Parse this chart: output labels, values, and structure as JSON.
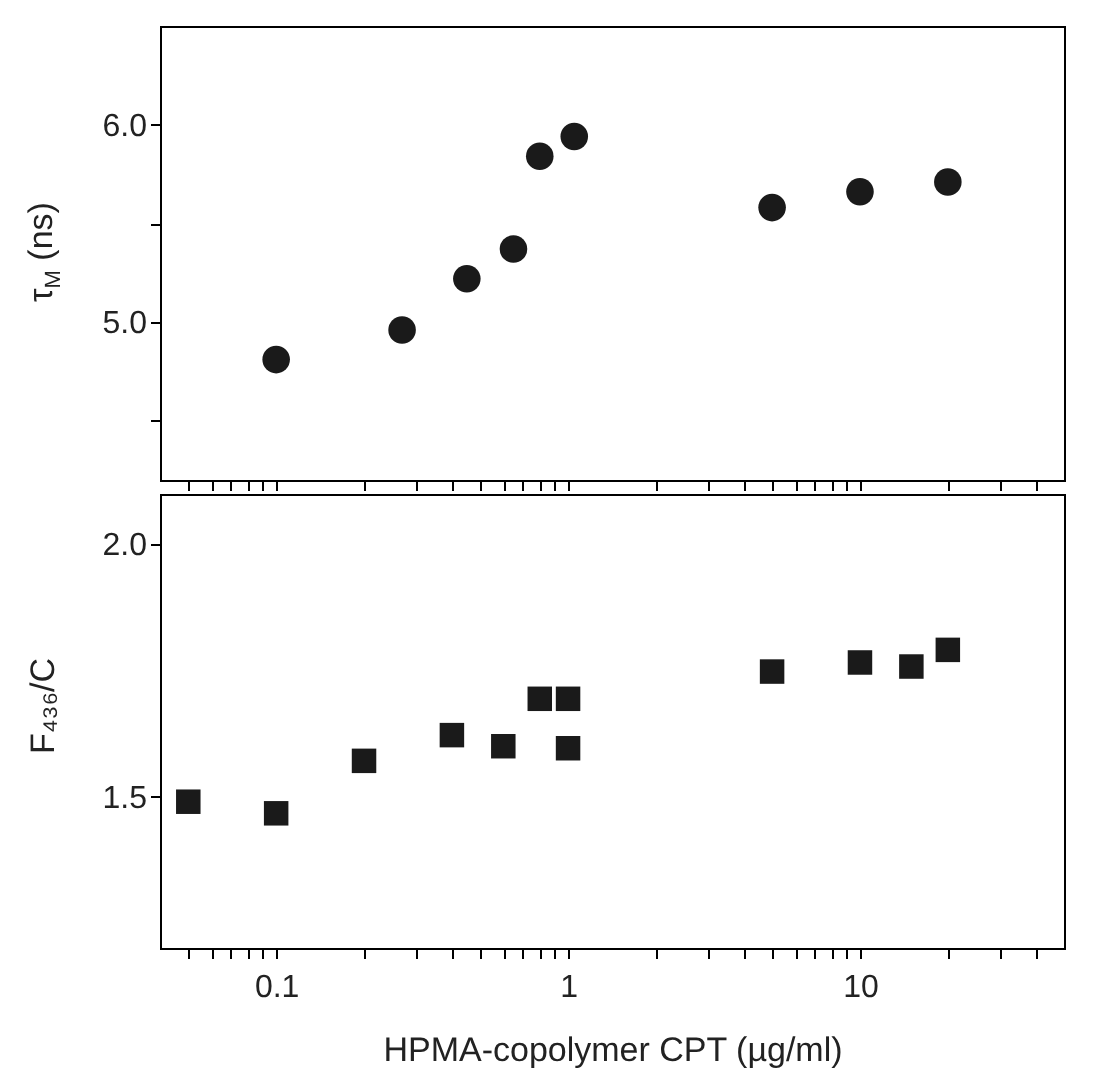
{
  "chart_data": [
    {
      "type": "scatter",
      "ylabel": "τ$_{M}$ (ns)",
      "log": "x",
      "marker": "circle",
      "tick_labels": "y",
      "x": [
        0.1,
        0.27,
        0.45,
        0.65,
        0.8,
        1.05,
        5,
        10,
        20
      ],
      "series": [
        {
          "color": "#1a1a1a",
          "values": [
            4.81,
            4.96,
            5.22,
            5.37,
            5.84,
            5.94,
            5.58,
            5.66,
            5.71
          ]
        }
      ],
      "xlim": [
        0.04,
        50
      ],
      "xticks": [
        {
          "value": 0.05,
          "label": null
        },
        {
          "value": 0.06,
          "label": null
        },
        {
          "value": 0.07,
          "label": null
        },
        {
          "value": 0.08,
          "label": null
        },
        {
          "value": 0.09,
          "label": null
        },
        {
          "value": 0.1,
          "label": null
        },
        {
          "value": 0.2,
          "label": null
        },
        {
          "value": 0.3,
          "label": null
        },
        {
          "value": 0.4,
          "label": null
        },
        {
          "value": 0.5,
          "label": null
        },
        {
          "value": 0.6,
          "label": null
        },
        {
          "value": 0.7,
          "label": null
        },
        {
          "value": 0.8,
          "label": null
        },
        {
          "value": 0.9,
          "label": null
        },
        {
          "value": 1,
          "label": null
        },
        {
          "value": 2,
          "label": null
        },
        {
          "value": 3,
          "label": null
        },
        {
          "value": 4,
          "label": null
        },
        {
          "value": 5,
          "label": null
        },
        {
          "value": 6,
          "label": null
        },
        {
          "value": 7,
          "label": null
        },
        {
          "value": 8,
          "label": null
        },
        {
          "value": 9,
          "label": null
        },
        {
          "value": 10,
          "label": null
        },
        {
          "value": 20,
          "label": null
        },
        {
          "value": 30,
          "label": null
        },
        {
          "value": 40,
          "label": null
        }
      ],
      "ylim": [
        4.2,
        6.5
      ],
      "yticks": [
        {
          "value": 4.5,
          "label": null
        },
        {
          "value": 5,
          "label": "5.0"
        },
        {
          "value": 5.5,
          "label": null
        },
        {
          "value": 6,
          "label": "6.0"
        }
      ]
    },
    {
      "type": "scatter",
      "ylabel": "F₄₃₆/C",
      "xlabel": "HPMA-copolymer CPT (µg/ml)",
      "log": "x",
      "marker": "square",
      "x": [
        0.05,
        0.1,
        0.2,
        0.4,
        0.6,
        0.8,
        1,
        1,
        5,
        10,
        15,
        20
      ],
      "series": [
        {
          "color": "#1a1a1a",
          "values": [
            1.49,
            1.467,
            1.571,
            1.622,
            1.6,
            1.694,
            1.694,
            1.596,
            1.748,
            1.766,
            1.758,
            1.791
          ]
        }
      ],
      "xlim": [
        0.04,
        50
      ],
      "xticks": [
        {
          "value": 0.05,
          "label": null
        },
        {
          "value": 0.06,
          "label": null
        },
        {
          "value": 0.07,
          "label": null
        },
        {
          "value": 0.08,
          "label": null
        },
        {
          "value": 0.09,
          "label": null
        },
        {
          "value": 0.1,
          "label": "0.1"
        },
        {
          "value": 0.2,
          "label": null
        },
        {
          "value": 0.3,
          "label": null
        },
        {
          "value": 0.4,
          "label": null
        },
        {
          "value": 0.5,
          "label": null
        },
        {
          "value": 0.6,
          "label": null
        },
        {
          "value": 0.7,
          "label": null
        },
        {
          "value": 0.8,
          "label": null
        },
        {
          "value": 0.9,
          "label": null
        },
        1,
        {
          "value": 2,
          "label": null
        },
        {
          "value": 3,
          "label": null
        },
        {
          "value": 4,
          "label": null
        },
        {
          "value": 5,
          "label": null
        },
        {
          "value": 6,
          "label": null
        },
        {
          "value": 7,
          "label": null
        },
        {
          "value": 8,
          "label": null
        },
        {
          "value": 9,
          "label": null
        },
        10,
        {
          "value": 20,
          "label": null
        },
        {
          "value": 30,
          "label": null
        },
        {
          "value": 40,
          "label": null
        }
      ],
      "ylim": [
        1.2,
        2.1
      ],
      "yticks": [
        {
          "value": 1.5,
          "label": "1.5"
        },
        {
          "value": 2,
          "label": "2.0"
        }
      ]
    }
  ]
}
